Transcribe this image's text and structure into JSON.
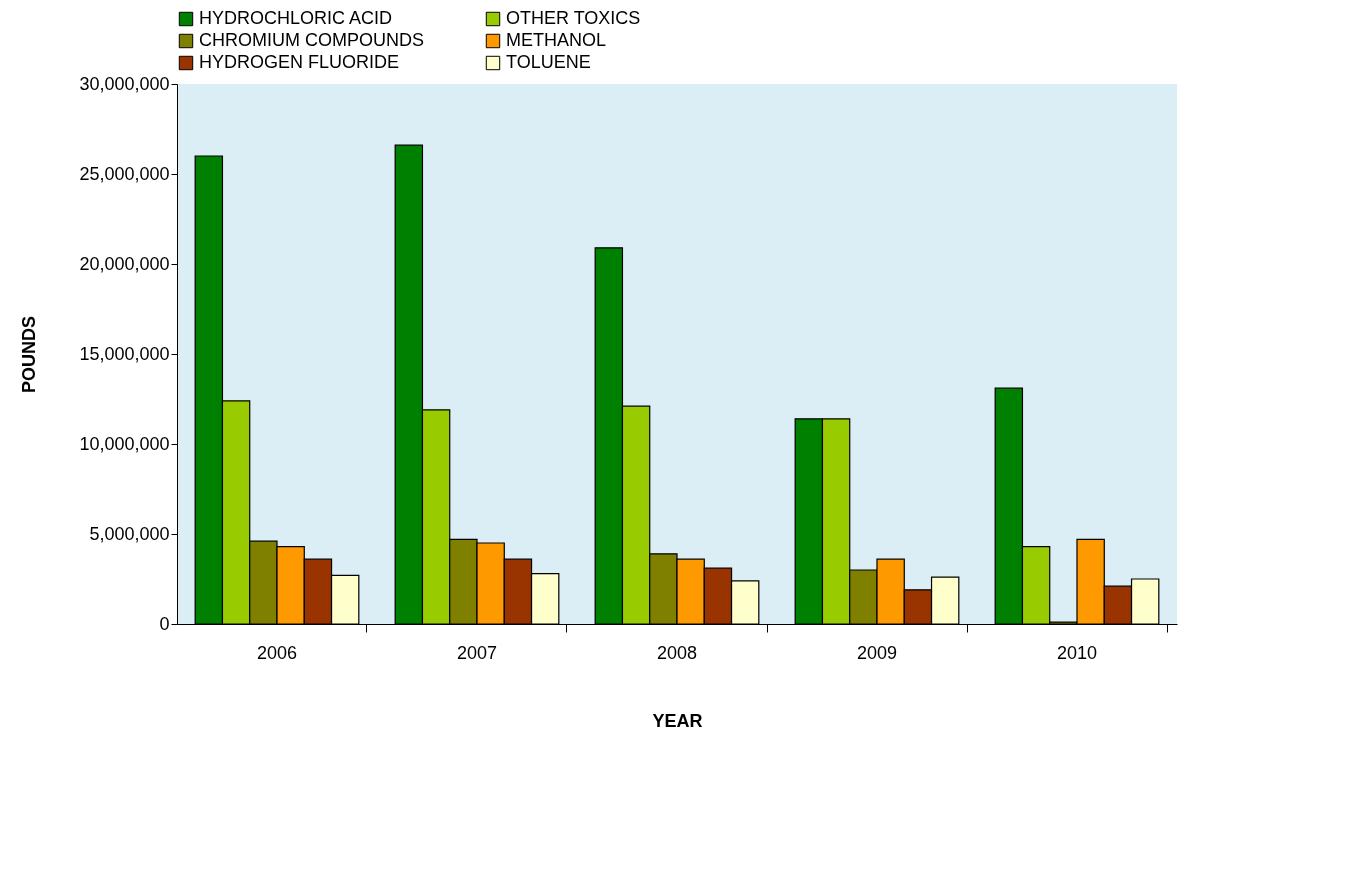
{
  "chart_data": {
    "type": "bar",
    "xlabel": "YEAR",
    "ylabel": "POUNDS",
    "categories": [
      "2006",
      "2007",
      "2008",
      "2009",
      "2010"
    ],
    "series": [
      {
        "name": "HYDROCHLORIC ACID",
        "color": "#008000",
        "values": [
          26000000,
          26600000,
          20900000,
          11400000,
          13100000
        ]
      },
      {
        "name": "OTHER TOXICS",
        "color": "#99cc00",
        "values": [
          12400000,
          11900000,
          12100000,
          11400000,
          4300000
        ]
      },
      {
        "name": "CHROMIUM COMPOUNDS",
        "color": "#808000",
        "values": [
          4600000,
          4700000,
          3900000,
          3000000,
          100000
        ]
      },
      {
        "name": "METHANOL",
        "color": "#ff9900",
        "values": [
          4300000,
          4500000,
          3600000,
          3600000,
          4700000
        ]
      },
      {
        "name": "HYDROGEN FLUORIDE",
        "color": "#993300",
        "values": [
          3600000,
          3600000,
          3100000,
          1900000,
          2100000
        ]
      },
      {
        "name": "TOLUENE",
        "color": "#ffffcc",
        "values": [
          2700000,
          2800000,
          2400000,
          2600000,
          2500000
        ]
      }
    ],
    "ylim": [
      0,
      30000000
    ],
    "yticks": [
      0,
      {
        "value": 5000000,
        "label": "5,000,000"
      },
      {
        "value": 10000000,
        "label": "10,000,000"
      },
      {
        "value": 15000000,
        "label": "15,000,000"
      },
      {
        "value": 20000000,
        "label": "20,000,000"
      },
      {
        "value": 25000000,
        "label": "25,000,000"
      },
      {
        "value": 30000000,
        "label": "30,000,000"
      }
    ],
    "grid": false,
    "legend": "top"
  }
}
